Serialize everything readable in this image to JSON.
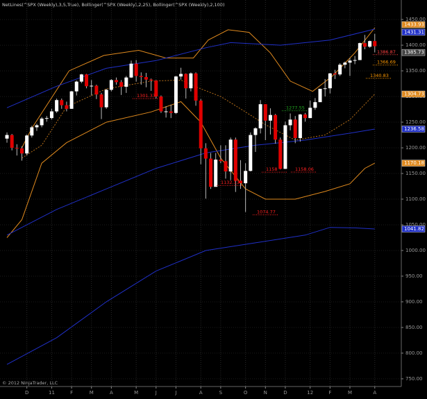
{
  "chart_data": {
    "type": "candlestick",
    "header": "NetLines(^SPX (Weekly),3,5,True), Bollinger(^SPX (Weekly),2,25), Bollinger(^SPX (Weekly),2,100)",
    "footer": "© 2012 NinjaTrader, LLC",
    "up_color": "#ffffff",
    "down_color": "#e00000",
    "grid": true,
    "xlim": [
      -1.4,
      79.2
    ],
    "ylim": [
      735,
      1488
    ],
    "xticks": [
      {
        "value": 4,
        "label": "D"
      },
      {
        "value": 9,
        "label": "11"
      },
      {
        "value": 13,
        "label": "F"
      },
      {
        "value": 17,
        "label": "M"
      },
      {
        "value": 21,
        "label": "A"
      },
      {
        "value": 26,
        "label": "M"
      },
      {
        "value": 30,
        "label": "J"
      },
      {
        "value": 34,
        "label": "J"
      },
      {
        "value": 39,
        "label": "A"
      },
      {
        "value": 43,
        "label": "S"
      },
      {
        "value": 48,
        "label": "O"
      },
      {
        "value": 52,
        "label": "N"
      },
      {
        "value": 56,
        "label": "D"
      },
      {
        "value": 61,
        "label": "12"
      },
      {
        "value": 65,
        "label": "F"
      },
      {
        "value": 69,
        "label": "M"
      },
      {
        "value": 74,
        "label": "A"
      }
    ],
    "yticks": [
      {
        "value": 750,
        "label": "750.00"
      },
      {
        "value": 800,
        "label": "800.00"
      },
      {
        "value": 850,
        "label": "850.00"
      },
      {
        "value": 900,
        "label": "900.00"
      },
      {
        "value": 950,
        "label": "950.00"
      },
      {
        "value": 1000,
        "label": "1000.00"
      },
      {
        "value": 1050,
        "label": "1050.00"
      },
      {
        "value": 1100,
        "label": "1100.00"
      },
      {
        "value": 1150,
        "label": "1150.00"
      },
      {
        "value": 1200,
        "label": "1200.00"
      },
      {
        "value": 1250,
        "label": "1250.00"
      },
      {
        "value": 1300,
        "label": "1300.00"
      },
      {
        "value": 1350,
        "label": "1350.00"
      },
      {
        "value": 1400,
        "label": "1400.00"
      },
      {
        "value": 1450,
        "label": "1450.00"
      }
    ],
    "open": [
      1218,
      1225,
      1200,
      1199,
      1189,
      1224,
      1240,
      1244,
      1257,
      1258,
      1271,
      1293,
      1283,
      1276,
      1310,
      1329,
      1343,
      1320,
      1321,
      1304,
      1279,
      1313,
      1332,
      1328,
      1319,
      1337,
      1364,
      1340,
      1338,
      1333,
      1331,
      1300,
      1271,
      1271,
      1268,
      1339,
      1344,
      1316,
      1345,
      1292,
      1199,
      1179,
      1124,
      1177,
      1174,
      1154,
      1216,
      1136,
      1131,
      1155,
      1225,
      1238,
      1285,
      1253,
      1264,
      1216,
      1159,
      1244,
      1255,
      1219,
      1265,
      1258,
      1278,
      1289,
      1315,
      1316,
      1345,
      1343,
      1362,
      1366,
      1370,
      1371,
      1404,
      1397,
      1408
    ],
    "high": [
      1230,
      1227,
      1207,
      1203,
      1226,
      1243,
      1247,
      1260,
      1262,
      1276,
      1296,
      1296,
      1290,
      1311,
      1331,
      1344,
      1344,
      1332,
      1323,
      1307,
      1315,
      1334,
      1337,
      1332,
      1340,
      1370,
      1371,
      1347,
      1346,
      1335,
      1332,
      1302,
      1281,
      1284,
      1340,
      1356,
      1345,
      1347,
      1347,
      1295,
      1209,
      1190,
      1190,
      1205,
      1205,
      1220,
      1220,
      1176,
      1170,
      1230,
      1240,
      1293,
      1285,
      1277,
      1266,
      1220,
      1251,
      1267,
      1262,
      1266,
      1268,
      1292,
      1297,
      1315,
      1334,
      1346,
      1352,
      1365,
      1368,
      1375,
      1379,
      1405,
      1420,
      1409,
      1422
    ],
    "low": [
      1210,
      1195,
      1185,
      1175,
      1185,
      1220,
      1233,
      1240,
      1251,
      1255,
      1268,
      1276,
      1271,
      1276,
      1302,
      1326,
      1316,
      1302,
      1295,
      1256,
      1276,
      1310,
      1323,
      1303,
      1307,
      1336,
      1329,
      1323,
      1318,
      1311,
      1296,
      1268,
      1259,
      1258,
      1266,
      1333,
      1296,
      1310,
      1282,
      1168,
      1101,
      1120,
      1125,
      1170,
      1140,
      1137,
      1114,
      1120,
      1075,
      1154,
      1192,
      1228,
      1215,
      1226,
      1208,
      1158,
      1159,
      1234,
      1209,
      1212,
      1251,
      1258,
      1274,
      1290,
      1300,
      1306,
      1334,
      1340,
      1355,
      1340,
      1363,
      1371,
      1392,
      1395,
      1386
    ],
    "close": [
      1225,
      1200,
      1199,
      1189,
      1224,
      1240,
      1244,
      1257,
      1258,
      1271,
      1293,
      1283,
      1276,
      1310,
      1329,
      1343,
      1320,
      1321,
      1304,
      1279,
      1313,
      1332,
      1328,
      1319,
      1337,
      1364,
      1340,
      1338,
      1333,
      1331,
      1300,
      1271,
      1271,
      1268,
      1339,
      1344,
      1316,
      1345,
      1292,
      1199,
      1179,
      1124,
      1177,
      1174,
      1154,
      1216,
      1136,
      1131,
      1155,
      1225,
      1238,
      1285,
      1253,
      1264,
      1216,
      1159,
      1244,
      1255,
      1219,
      1265,
      1258,
      1278,
      1289,
      1315,
      1316,
      1345,
      1343,
      1362,
      1366,
      1370,
      1371,
      1404,
      1397,
      1408,
      1398
    ],
    "overlays": [
      {
        "color": "#e08a1e",
        "x": [
          3,
          5,
          12.5,
          19.5,
          26.5,
          32,
          37.5,
          40.5,
          44.5,
          48.7,
          53,
          57,
          61.5,
          65.5,
          70,
          74
        ],
        "values": [
          1200,
          1238,
          1350,
          1380,
          1390,
          1375,
          1375,
          1410,
          1430,
          1425,
          1385,
          1330,
          1310,
          1340,
          1385,
          1433.93
        ]
      },
      {
        "color": "#b8701a",
        "x": [
          3,
          7,
          12,
          20,
          29,
          35,
          39,
          43,
          48,
          52,
          58,
          64,
          69,
          72,
          74
        ],
        "values": [
          1180,
          1205,
          1280,
          1315,
          1330,
          1332,
          1315,
          1300,
          1270,
          1245,
          1215,
          1225,
          1255,
          1285,
          1304.73
        ]
      },
      {
        "color": "#e08a1e",
        "x": [
          0,
          3,
          7,
          12,
          20,
          29,
          35,
          39,
          43,
          48,
          52,
          58,
          64,
          69,
          72,
          74
        ],
        "values": [
          1025,
          1060,
          1170,
          1210,
          1250,
          1270,
          1290,
          1250,
          1180,
          1120,
          1100,
          1100,
          1115,
          1130,
          1160,
          1170.18
        ]
      },
      {
        "color": "#2030c8",
        "x": [
          0,
          10,
          20,
          30,
          40,
          45,
          55,
          65,
          74
        ],
        "values": [
          1278,
          1320,
          1355,
          1370,
          1395,
          1405,
          1400,
          1410,
          1431.31
        ]
      },
      {
        "color": "#2030c8",
        "x": [
          0,
          10,
          20,
          30,
          40,
          50,
          60,
          70,
          74
        ],
        "values": [
          1030,
          1080,
          1120,
          1160,
          1190,
          1205,
          1215,
          1230,
          1236.58
        ]
      },
      {
        "color": "#2030c8",
        "x": [
          0,
          10,
          20,
          30,
          40,
          50,
          60,
          65,
          70,
          74
        ],
        "values": [
          778,
          830,
          900,
          960,
          1000,
          1015,
          1030,
          1045,
          1044,
          1041.82
        ]
      }
    ],
    "axis_tags": [
      {
        "value": 1433.93,
        "color": "#e08a1e"
      },
      {
        "value": 1431.31,
        "color": "#2030c8"
      },
      {
        "value": 1385.73,
        "color": "#444444"
      },
      {
        "value": 1304.73,
        "color": "#e08a1e"
      },
      {
        "value": 1236.58,
        "color": "#2030c8"
      },
      {
        "value": 1170.18,
        "color": "#e08a1e"
      },
      {
        "value": 1041.82,
        "color": "#2030c8"
      }
    ],
    "net_lines": [
      {
        "value": 1386.87,
        "color": "#ff4040"
      },
      {
        "value": 1366.69,
        "color": "#ff9900"
      },
      {
        "value": 1340.83,
        "color": "#ff9900"
      },
      {
        "value": 1277.55,
        "color": "#22aa22"
      },
      {
        "value": 1301.33,
        "color": "#ff2020"
      },
      {
        "value": 1158.06,
        "color": "#ff2020"
      },
      {
        "value": 1158,
        "color": "#ff2020"
      },
      {
        "value": 1132.13,
        "color": "#ff2020"
      },
      {
        "value": 1074.77,
        "color": "#ff2020"
      }
    ]
  }
}
